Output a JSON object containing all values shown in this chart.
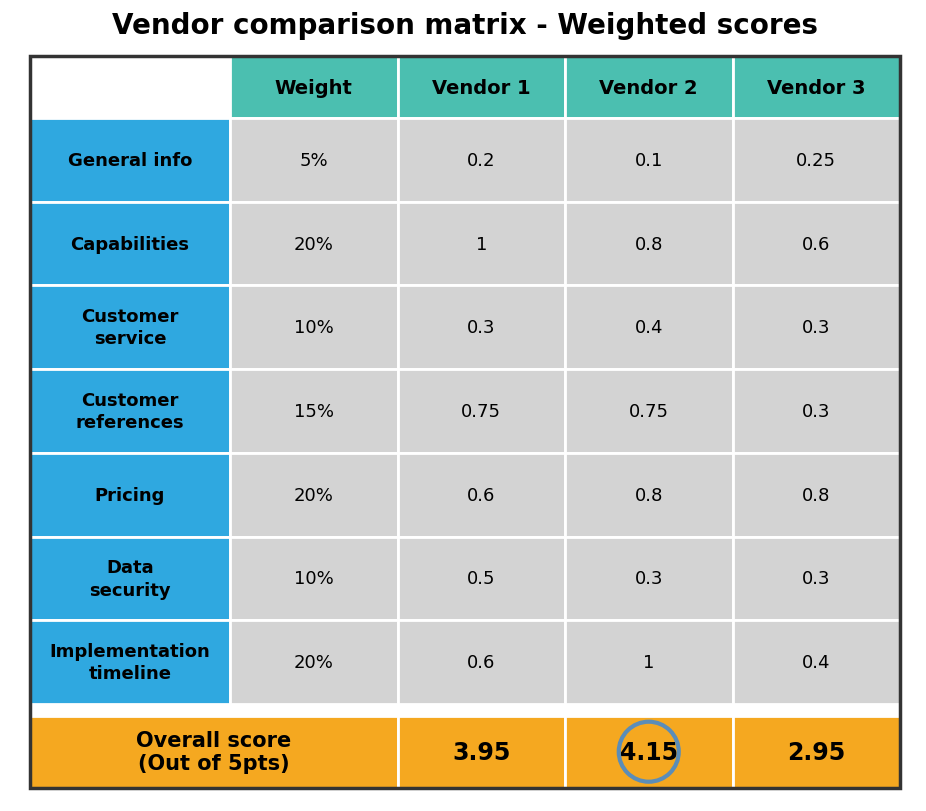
{
  "title": "Vendor comparison matrix - Weighted scores",
  "header_bg": "#4BBFB0",
  "row_label_bg": "#2FA8E0",
  "data_bg": "#D3D3D3",
  "overall_bg": "#F5A820",
  "highlight_circle_color": "#5B8DB8",
  "col_headers": [
    "Weight",
    "Vendor 1",
    "Vendor 2",
    "Vendor 3"
  ],
  "rows": [
    {
      "label": "General info",
      "weight": "5%",
      "v1": "0.2",
      "v2": "0.1",
      "v3": "0.25"
    },
    {
      "label": "Capabilities",
      "weight": "20%",
      "v1": "1",
      "v2": "0.8",
      "v3": "0.6"
    },
    {
      "label": "Customer\nservice",
      "weight": "10%",
      "v1": "0.3",
      "v2": "0.4",
      "v3": "0.3"
    },
    {
      "label": "Customer\nreferences",
      "weight": "15%",
      "v1": "0.75",
      "v2": "0.75",
      "v3": "0.3"
    },
    {
      "label": "Pricing",
      "weight": "20%",
      "v1": "0.6",
      "v2": "0.8",
      "v3": "0.8"
    },
    {
      "label": "Data\nsecurity",
      "weight": "10%",
      "v1": "0.5",
      "v2": "0.3",
      "v3": "0.3"
    },
    {
      "label": "Implementation\ntimeline",
      "weight": "20%",
      "v1": "0.6",
      "v2": "1",
      "v3": "0.4"
    }
  ],
  "overall_label": "Overall score\n(Out of 5pts)",
  "overall_v1": "3.95",
  "overall_v2": "4.15",
  "overall_v3": "2.95",
  "overall_highlight_col": 1
}
